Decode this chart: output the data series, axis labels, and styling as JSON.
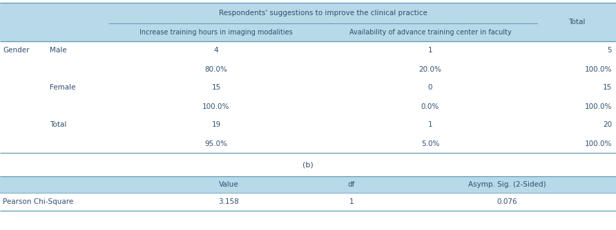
{
  "header_bg": "#b8d9e8",
  "white_bg": "#ffffff",
  "text_color": "#2f4f6f",
  "border_color": "#5a9ab5",
  "main_header": "Respondents' suggestions to improve the clinical practice",
  "col1_header": "Increase training hours in imaging modalities",
  "col2_header": "Availability of advance training center in faculty",
  "total_header": "Total",
  "rows": [
    {
      "label1": "Gender",
      "label2": "Male",
      "v1": "4",
      "v2": "1",
      "vt": "5"
    },
    {
      "label1": "",
      "label2": "",
      "v1": "80.0%",
      "v2": "20.0%",
      "vt": "100.0%"
    },
    {
      "label1": "",
      "label2": "Female",
      "v1": "15",
      "v2": "0",
      "vt": "15"
    },
    {
      "label1": "",
      "label2": "",
      "v1": "100.0%",
      "v2": "0.0%",
      "vt": "100.0%"
    },
    {
      "label1": "",
      "label2": "Total",
      "v1": "19",
      "v2": "1",
      "vt": "20"
    },
    {
      "label1": "",
      "label2": "",
      "v1": "95.0%",
      "v2": "5.0%",
      "vt": "100.0%"
    }
  ],
  "b_label": "(b)",
  "chi_headers": [
    "",
    "Value",
    "df",
    "Asymp. Sig. (2-Sided)"
  ],
  "chi_row": [
    "Pearson Chi-Square",
    "3.158",
    "1",
    "0.076"
  ],
  "fig_width": 8.92,
  "fig_height": 3.34,
  "dpi": 100
}
